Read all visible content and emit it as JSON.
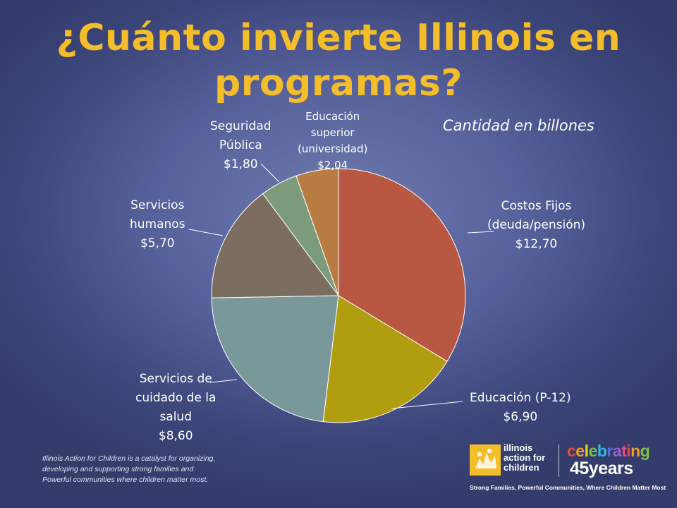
{
  "slide": {
    "title_line1": "¿Cuánto invierte Illinois en",
    "title_line2": "programas?",
    "subtitle": "Cantidad en billones",
    "footnote_lines": [
      "Illinois Action for Children is a catalyst for organizing,",
      "developing and supporting strong families and",
      "Powerful communities where children matter most."
    ]
  },
  "logo": {
    "org_lines": [
      "illinois",
      "action for",
      "children"
    ],
    "celebrating": "celebrating",
    "years": "45years",
    "tagline": "Strong Families, Powerful Communities, Where Children Matter Most",
    "celebrating_colors": [
      "#e84a3c",
      "#f39c26",
      "#f3d21f",
      "#7cc242",
      "#2fb7e8",
      "#4f6fd8",
      "#a35bd0",
      "#e84a8a",
      "#e84a3c",
      "#f39c26",
      "#7cc242"
    ]
  },
  "chart_data": {
    "type": "pie",
    "title": "¿Cuánto invierte Illinois en programas?",
    "subtitle": "Cantidad en billones",
    "slices": [
      {
        "label_lines": [
          "Costos Fijos",
          "(deuda/pensión)"
        ],
        "value_label": "$12,70",
        "value": 12.7,
        "color": "#b85842"
      },
      {
        "label_lines": [
          "Educación (P-12)"
        ],
        "value_label": "$6,90",
        "value": 6.9,
        "color": "#b09e10"
      },
      {
        "label_lines": [
          "Servicios de",
          "cuidado de la",
          "salud"
        ],
        "value_label": "$8,60",
        "value": 8.6,
        "color": "#79989a"
      },
      {
        "label_lines": [
          "Servicios",
          "humanos"
        ],
        "value_label": "$5,70",
        "value": 5.7,
        "color": "#7b6d60"
      },
      {
        "label_lines": [
          "Seguridad",
          "Pública"
        ],
        "value_label": "$1,80",
        "value": 1.8,
        "color": "#7c9b7a"
      },
      {
        "label_lines": [
          "Educación",
          "superior",
          "(universidad)"
        ],
        "value_label": "$2,04",
        "value": 2.04,
        "color": "#b87c42"
      }
    ]
  }
}
